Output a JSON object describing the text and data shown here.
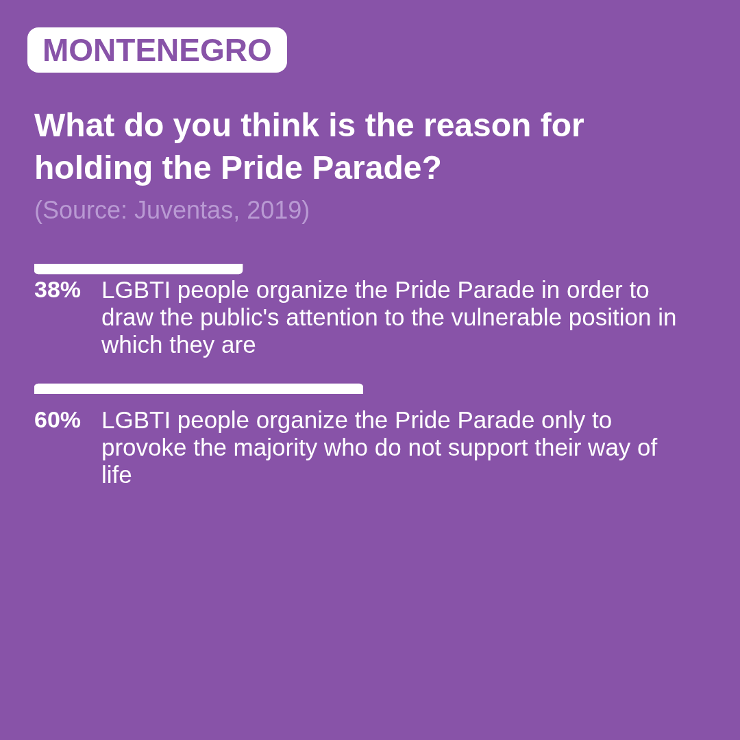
{
  "chart_data": {
    "type": "bar",
    "orientation": "horizontal",
    "subtitle": "MONTENEGRO",
    "title": "What do you think is the reason for holding the Pride Parade?",
    "annotations": [
      "(Source: Juventas, 2019)"
    ],
    "categories": [
      "LGBTI people organize the Pride Parade in order to draw the public's attention to the vulnerable position in which they are",
      "LGBTI people organize the Pride Parade only to provoke the majority who do not support their way of life"
    ],
    "values": [
      38,
      60
    ],
    "value_labels": [
      "38%",
      "60%"
    ],
    "color": "#ffffff",
    "tick_labels": false
  }
}
